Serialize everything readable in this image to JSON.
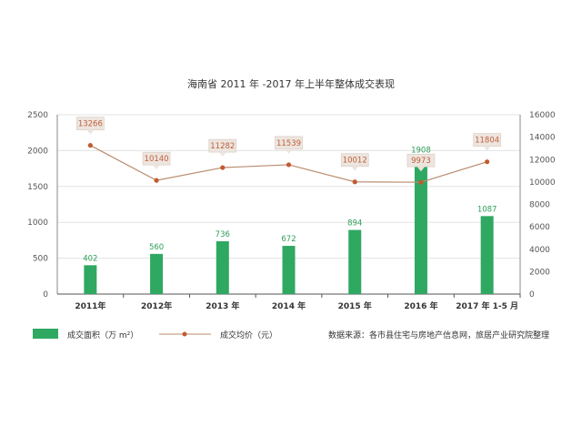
{
  "chart_data": {
    "type": "bar+line",
    "title": "海南省 2011 年 -2017 年上半年整体成交表现",
    "categories": [
      "2011年",
      "2012年",
      "2013 年",
      "2014 年",
      "2015 年",
      "2016 年",
      "2017 年 1-5 月"
    ],
    "series": [
      {
        "name": "成交面积（万 m²）",
        "type": "bar",
        "axis": "left",
        "values": [
          402,
          560,
          736,
          672,
          894,
          1908,
          1087
        ],
        "labels": [
          "402",
          "560",
          "736",
          "672",
          "894",
          "1908",
          "1087"
        ],
        "color": "#2fa862"
      },
      {
        "name": "成交均价（元）",
        "type": "line",
        "axis": "right",
        "values": [
          13266,
          10140,
          11282,
          11539,
          10012,
          9973,
          11804
        ],
        "labels": [
          "13266",
          "10140",
          "11282",
          "11539",
          "10012",
          "9973",
          "11804"
        ],
        "color": "#b98b6e"
      }
    ],
    "y_left": {
      "min": 0,
      "max": 2500,
      "ticks": [
        "0",
        "500",
        "1000",
        "1500",
        "2000",
        "2500"
      ]
    },
    "y_right": {
      "min": 0,
      "max": 16000,
      "ticks": [
        "0",
        "2000",
        "4000",
        "6000",
        "8000",
        "10000",
        "12000",
        "14000",
        "16000"
      ]
    },
    "grid": true,
    "legend_position": "bottom",
    "source": "数据来源：各市县住宅与房地产信息网，旅居产业研究院整理"
  }
}
